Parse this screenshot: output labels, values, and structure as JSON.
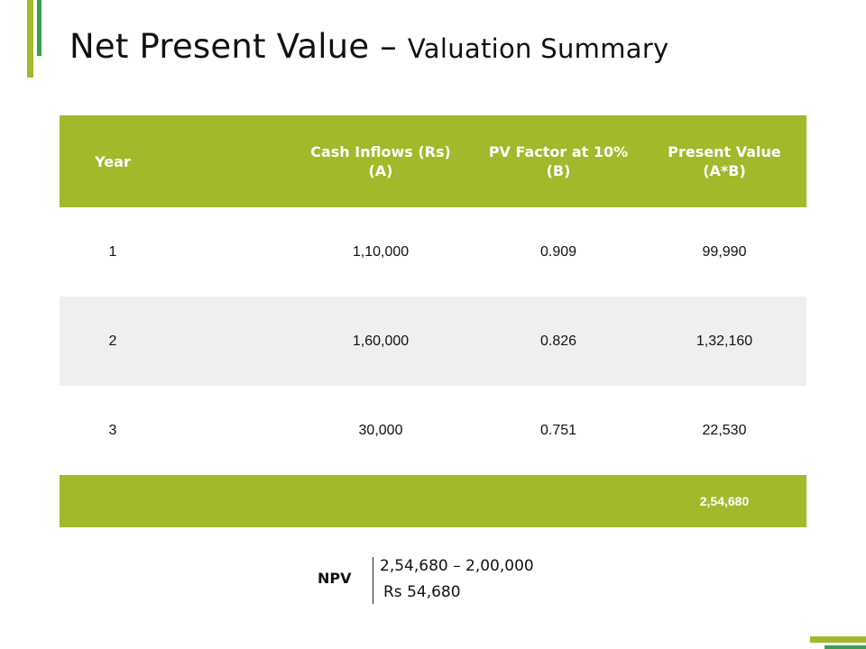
{
  "slide": {
    "title_main": "Net Present Value – ",
    "title_sub": "Valuation Summary",
    "colors": {
      "accent_green": "#a3b82b",
      "accent_dark_green": "#3aa04a",
      "alt_row": "#efefef"
    }
  },
  "table": {
    "headers": {
      "year": "Year",
      "cash_inflows_line1": "Cash Inflows (Rs)",
      "cash_inflows_line2": "(A)",
      "pv_factor_line1": "PV Factor at 10%",
      "pv_factor_line2": "(B)",
      "present_value_line1": "Present Value",
      "present_value_line2": "(A*B)"
    },
    "rows": [
      {
        "year": "1",
        "cash_inflows": "1,10,000",
        "pv_factor": "0.909",
        "present_value": "99,990"
      },
      {
        "year": "2",
        "cash_inflows": "1,60,000",
        "pv_factor": "0.826",
        "present_value": "1,32,160"
      },
      {
        "year": "3",
        "cash_inflows": "30,000",
        "pv_factor": "0.751",
        "present_value": "22,530"
      }
    ],
    "total": {
      "year": "",
      "cash_inflows": "",
      "pv_factor": "",
      "present_value": "2,54,680"
    }
  },
  "npv": {
    "label": "NPV",
    "formula": "2,54,680 – 2,00,000",
    "result": "Rs 54,680"
  }
}
